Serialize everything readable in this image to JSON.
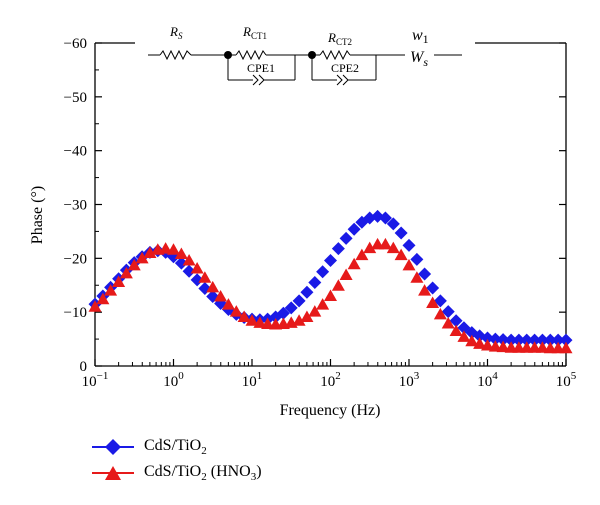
{
  "chart_data": {
    "type": "scatter",
    "xlabel": "Frequency (Hz)",
    "ylabel": "Phase (°)",
    "x_scale": "log",
    "xlim": [
      0.1,
      100000
    ],
    "ylim": [
      0,
      -60
    ],
    "x_ticks": [
      {
        "base": "10",
        "exp": "−1"
      },
      {
        "base": "10",
        "exp": "0"
      },
      {
        "base": "10",
        "exp": "1"
      },
      {
        "base": "10",
        "exp": "2"
      },
      {
        "base": "10",
        "exp": "3"
      },
      {
        "base": "10",
        "exp": "4"
      },
      {
        "base": "10",
        "exp": "5"
      }
    ],
    "y_ticks": [
      "0",
      "−10",
      "−20",
      "−30",
      "−40",
      "−50",
      "−60"
    ],
    "legend_position": "bottom-left",
    "series": [
      {
        "name": "CdS/TiO2",
        "name_main": "CdS/TiO",
        "name_sub": "2",
        "name_rest": "",
        "color": "#1a1ae6",
        "marker": "diamond",
        "x": [
          0.1,
          0.126,
          0.158,
          0.2,
          0.251,
          0.316,
          0.398,
          0.501,
          0.631,
          0.794,
          1.0,
          1.26,
          1.58,
          2.0,
          2.51,
          3.16,
          3.98,
          5.01,
          6.31,
          7.94,
          10.0,
          12.6,
          15.8,
          20.0,
          25.1,
          31.6,
          39.8,
          50.1,
          63.1,
          79.4,
          100,
          126,
          158,
          200,
          251,
          316,
          398,
          501,
          631,
          794,
          1000,
          1260,
          1580,
          2000,
          2510,
          3160,
          3980,
          5010,
          6310,
          7940,
          10000,
          12600,
          15800,
          20000,
          25100,
          31600,
          39800,
          50100,
          63100,
          79400,
          100000
        ],
        "y": [
          -11.5,
          -13,
          -14.6,
          -16.2,
          -17.8,
          -19.2,
          -20.3,
          -21.1,
          -21.4,
          -21.1,
          -20.3,
          -19.1,
          -17.6,
          -16,
          -14.4,
          -12.9,
          -11.6,
          -10.5,
          -9.6,
          -9,
          -8.7,
          -8.6,
          -8.7,
          -9.1,
          -9.8,
          -10.8,
          -12.1,
          -13.7,
          -15.5,
          -17.5,
          -19.6,
          -21.8,
          -23.7,
          -25.4,
          -26.7,
          -27.5,
          -27.8,
          -27.5,
          -26.4,
          -24.7,
          -22.4,
          -19.8,
          -17.1,
          -14.5,
          -12.1,
          -10.1,
          -8.4,
          -7.1,
          -6.2,
          -5.6,
          -5.2,
          -5,
          -4.9,
          -4.8,
          -4.8,
          -4.8,
          -4.8,
          -4.8,
          -4.8,
          -4.8,
          -4.8
        ]
      },
      {
        "name": "CdS/TiO2 (HNO3)",
        "name_main": "CdS/TiO",
        "name_sub": "2",
        "name_rest": " (HNO",
        "name_sub2": "3",
        "name_tail": ")",
        "color": "#e61a1a",
        "marker": "triangle",
        "x": [
          0.1,
          0.126,
          0.158,
          0.2,
          0.251,
          0.316,
          0.398,
          0.501,
          0.631,
          0.794,
          1.0,
          1.26,
          1.58,
          2.0,
          2.51,
          3.16,
          3.98,
          5.01,
          6.31,
          7.94,
          10.0,
          12.6,
          15.8,
          20.0,
          25.1,
          31.6,
          39.8,
          50.1,
          63.1,
          79.4,
          100,
          126,
          158,
          200,
          251,
          316,
          398,
          501,
          631,
          794,
          1000,
          1260,
          1580,
          2000,
          2510,
          3160,
          3980,
          5010,
          6310,
          7940,
          10000,
          12600,
          15800,
          20000,
          25100,
          31600,
          39800,
          50100,
          63100,
          79400,
          100000
        ],
        "y": [
          -11,
          -12.4,
          -14,
          -15.6,
          -17.2,
          -18.7,
          -20,
          -21,
          -21.6,
          -21.8,
          -21.6,
          -20.8,
          -19.6,
          -18.1,
          -16.4,
          -14.6,
          -12.9,
          -11.4,
          -10.1,
          -9.1,
          -8.4,
          -8,
          -7.8,
          -7.7,
          -7.8,
          -8,
          -8.4,
          -9.1,
          -10.1,
          -11.4,
          -13,
          -14.9,
          -16.9,
          -18.9,
          -20.6,
          -21.9,
          -22.6,
          -22.6,
          -21.9,
          -20.6,
          -18.7,
          -16.4,
          -14,
          -11.7,
          -9.6,
          -7.9,
          -6.5,
          -5.4,
          -4.6,
          -4.1,
          -3.8,
          -3.6,
          -3.5,
          -3.4,
          -3.4,
          -3.4,
          -3.4,
          -3.4,
          -3.3,
          -3.3,
          -3.3
        ]
      }
    ]
  },
  "inset": {
    "rs_main": "R",
    "rs_sub": "S",
    "rct1_main": "R",
    "rct1_sub": "CT1",
    "rct2_main": "R",
    "rct2_sub": "CT2",
    "w1_main": "w",
    "w1_sub": "1",
    "ws_main": "W",
    "ws_sub": "s",
    "cpe1": "CPE1",
    "cpe2": "CPE2"
  }
}
